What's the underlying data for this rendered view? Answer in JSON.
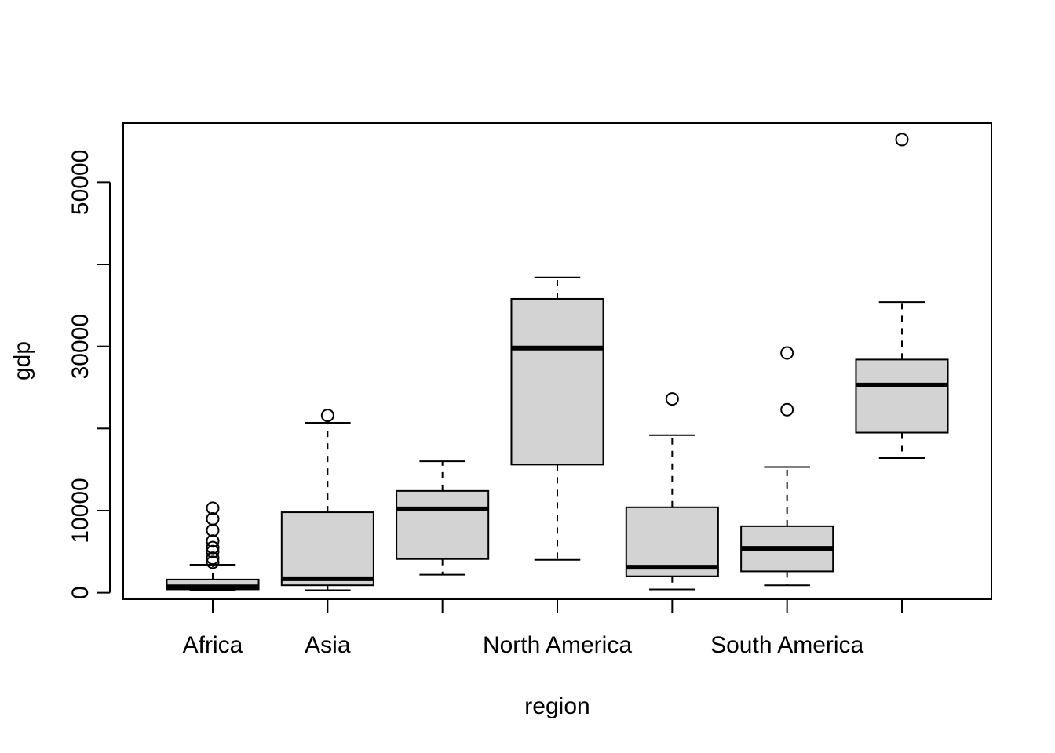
{
  "chart_data": {
    "type": "boxplot",
    "xlabel": "region",
    "ylabel": "gdp",
    "ylim": [
      -800,
      57200
    ],
    "yticks": [
      0,
      10000,
      20000,
      30000,
      40000,
      50000
    ],
    "ytick_labels": [
      "0",
      "10000",
      "",
      "30000",
      "",
      "50000"
    ],
    "categories": [
      "Africa",
      "Asia",
      "",
      "North America",
      "",
      "South America",
      ""
    ],
    "box_fill": "#d3d3d3",
    "boxes": [
      {
        "whisker_low": 300,
        "q1": 400,
        "median": 700,
        "q3": 1600,
        "whisker_high": 3400,
        "outliers": [
          3700,
          4200,
          5000,
          5500,
          6300,
          7600,
          9000,
          10300
        ]
      },
      {
        "whisker_low": 300,
        "q1": 900,
        "median": 1700,
        "q3": 9800,
        "whisker_high": 20700,
        "outliers": [
          21600
        ]
      },
      {
        "whisker_low": 2200,
        "q1": 4100,
        "median": 10200,
        "q3": 12400,
        "whisker_high": 16000,
        "outliers": []
      },
      {
        "whisker_low": 4000,
        "q1": 15600,
        "median": 29800,
        "q3": 35800,
        "whisker_high": 38400,
        "outliers": []
      },
      {
        "whisker_low": 400,
        "q1": 2000,
        "median": 3100,
        "q3": 10400,
        "whisker_high": 19200,
        "outliers": [
          23600
        ]
      },
      {
        "whisker_low": 900,
        "q1": 2600,
        "median": 5400,
        "q3": 8100,
        "whisker_high": 15300,
        "outliers": [
          22300,
          29200
        ]
      },
      {
        "whisker_low": 16400,
        "q1": 19500,
        "median": 25300,
        "q3": 28400,
        "whisker_high": 35400,
        "outliers": [
          55200
        ]
      }
    ]
  }
}
